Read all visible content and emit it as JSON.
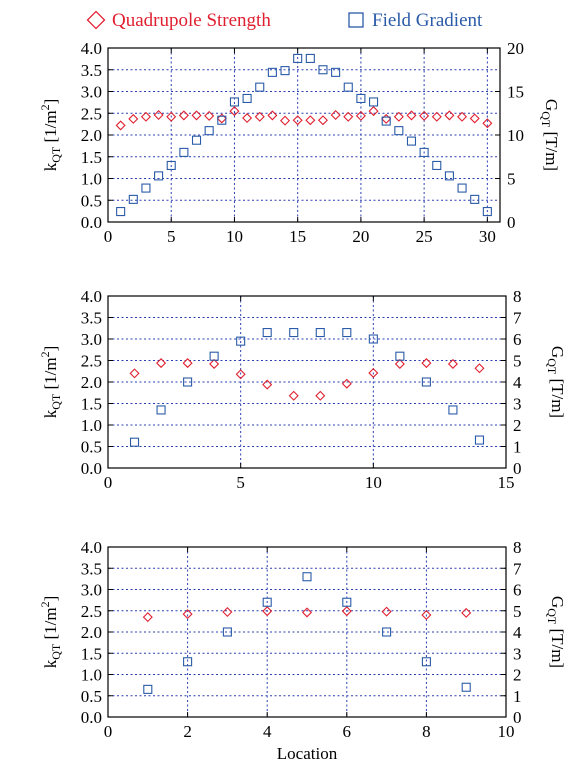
{
  "legend": [
    {
      "label": "Quadrupole Strength",
      "color": "#e02030",
      "marker": "diamond"
    },
    {
      "label": "Field Gradient",
      "color": "#2a5ba8",
      "marker": "square"
    }
  ],
  "chart_data": [
    {
      "type": "scatter",
      "xlim": [
        0,
        31
      ],
      "xticks": [
        0,
        5,
        10,
        15,
        20,
        25,
        30
      ],
      "ylim_left": [
        0,
        4
      ],
      "yticks_left": [
        "0.0",
        "0.5",
        "1.0",
        "1.5",
        "2.0",
        "2.5",
        "3.0",
        "3.5",
        "4.0"
      ],
      "ylim_right": [
        0,
        20
      ],
      "yticks_right": [
        "0",
        "5",
        "10",
        "15",
        "20"
      ],
      "ylabel_left": "k",
      "ylabel_left_sub": "QT",
      "ylabel_left_unit_pre": " [1/m",
      "ylabel_left_unit_sup": "2",
      "ylabel_left_unit_post": "]",
      "ylabel_right": "G",
      "ylabel_right_sub": "QT",
      "ylabel_right_unit": " [T/m]",
      "xlabel": "",
      "grid": true,
      "series": [
        {
          "axis": "left",
          "marker": "diamond",
          "color": "#e02030",
          "x": [
            1,
            2,
            3,
            4,
            5,
            6,
            7,
            8,
            9,
            10,
            11,
            12,
            13,
            14,
            15,
            16,
            17,
            18,
            19,
            20,
            21,
            22,
            23,
            24,
            25,
            26,
            27,
            28,
            29,
            30
          ],
          "y": [
            2.22,
            2.37,
            2.42,
            2.46,
            2.42,
            2.45,
            2.45,
            2.44,
            2.38,
            2.55,
            2.39,
            2.42,
            2.45,
            2.33,
            2.34,
            2.34,
            2.34,
            2.46,
            2.42,
            2.44,
            2.55,
            2.37,
            2.42,
            2.45,
            2.44,
            2.42,
            2.45,
            2.42,
            2.38,
            2.27
          ]
        },
        {
          "axis": "right",
          "marker": "square",
          "color": "#2a5ba8",
          "x": [
            1,
            2,
            3,
            4,
            5,
            6,
            7,
            8,
            9,
            10,
            11,
            12,
            13,
            14,
            15,
            16,
            17,
            18,
            19,
            20,
            21,
            22,
            23,
            24,
            25,
            26,
            27,
            28,
            29,
            30
          ],
          "y": [
            1.2,
            2.6,
            3.9,
            5.3,
            6.5,
            8.0,
            9.4,
            10.5,
            11.7,
            13.8,
            14.2,
            15.5,
            17.2,
            17.4,
            18.8,
            18.8,
            17.5,
            17.2,
            15.5,
            14.2,
            13.8,
            11.6,
            10.5,
            9.3,
            8.0,
            6.5,
            5.3,
            3.9,
            2.6,
            1.2
          ]
        }
      ]
    },
    {
      "type": "scatter",
      "xlim": [
        0,
        15
      ],
      "xticks": [
        0,
        5,
        10,
        15
      ],
      "ylim_left": [
        0,
        4
      ],
      "yticks_left": [
        "0.0",
        "0.5",
        "1.0",
        "1.5",
        "2.0",
        "2.5",
        "3.0",
        "3.5",
        "4.0"
      ],
      "ylim_right": [
        0,
        8
      ],
      "yticks_right": [
        "0",
        "1",
        "2",
        "3",
        "4",
        "5",
        "6",
        "7",
        "8"
      ],
      "ylabel_left": "k",
      "ylabel_left_sub": "QT",
      "ylabel_left_unit_pre": " [1/m",
      "ylabel_left_unit_sup": "2",
      "ylabel_left_unit_post": "]",
      "ylabel_right": "G",
      "ylabel_right_sub": "QT",
      "ylabel_right_unit": " [T/m]",
      "xlabel": "",
      "grid": true,
      "series": [
        {
          "axis": "left",
          "marker": "diamond",
          "color": "#e02030",
          "x": [
            1,
            2,
            3,
            4,
            5,
            6,
            7,
            8,
            9,
            10,
            11,
            12,
            13,
            14
          ],
          "y": [
            2.2,
            2.44,
            2.44,
            2.42,
            2.18,
            1.94,
            1.68,
            1.68,
            1.96,
            2.21,
            2.42,
            2.44,
            2.42,
            2.32
          ]
        },
        {
          "axis": "right",
          "marker": "square",
          "color": "#2a5ba8",
          "x": [
            1,
            2,
            3,
            4,
            5,
            6,
            7,
            8,
            9,
            10,
            11,
            12,
            13,
            14
          ],
          "y": [
            1.2,
            2.7,
            4.0,
            5.2,
            5.9,
            6.3,
            6.3,
            6.3,
            6.3,
            6.0,
            5.2,
            4.0,
            2.7,
            1.3
          ]
        }
      ]
    },
    {
      "type": "scatter",
      "xlim": [
        0,
        10
      ],
      "xticks": [
        0,
        2,
        4,
        6,
        8,
        10
      ],
      "ylim_left": [
        0,
        4
      ],
      "yticks_left": [
        "0.0",
        "0.5",
        "1.0",
        "1.5",
        "2.0",
        "2.5",
        "3.0",
        "3.5",
        "4.0"
      ],
      "ylim_right": [
        0,
        8
      ],
      "yticks_right": [
        "0",
        "1",
        "2",
        "3",
        "4",
        "5",
        "6",
        "7",
        "8"
      ],
      "ylabel_left": "k",
      "ylabel_left_sub": "QT",
      "ylabel_left_unit_pre": " [1/m",
      "ylabel_left_unit_sup": "2",
      "ylabel_left_unit_post": "]",
      "ylabel_right": "G",
      "ylabel_right_sub": "QT",
      "ylabel_right_unit": " [T/m]",
      "xlabel": "Location",
      "grid": true,
      "series": [
        {
          "axis": "left",
          "marker": "diamond",
          "color": "#e02030",
          "x": [
            1,
            2,
            3,
            4,
            5,
            6,
            7,
            8,
            9
          ],
          "y": [
            2.35,
            2.42,
            2.47,
            2.49,
            2.46,
            2.49,
            2.48,
            2.4,
            2.45
          ]
        },
        {
          "axis": "right",
          "marker": "square",
          "color": "#2a5ba8",
          "x": [
            1,
            2,
            3,
            4,
            5,
            6,
            7,
            8,
            9
          ],
          "y": [
            1.3,
            2.6,
            4.0,
            5.4,
            6.6,
            5.4,
            4.0,
            2.6,
            1.4
          ]
        }
      ]
    }
  ]
}
